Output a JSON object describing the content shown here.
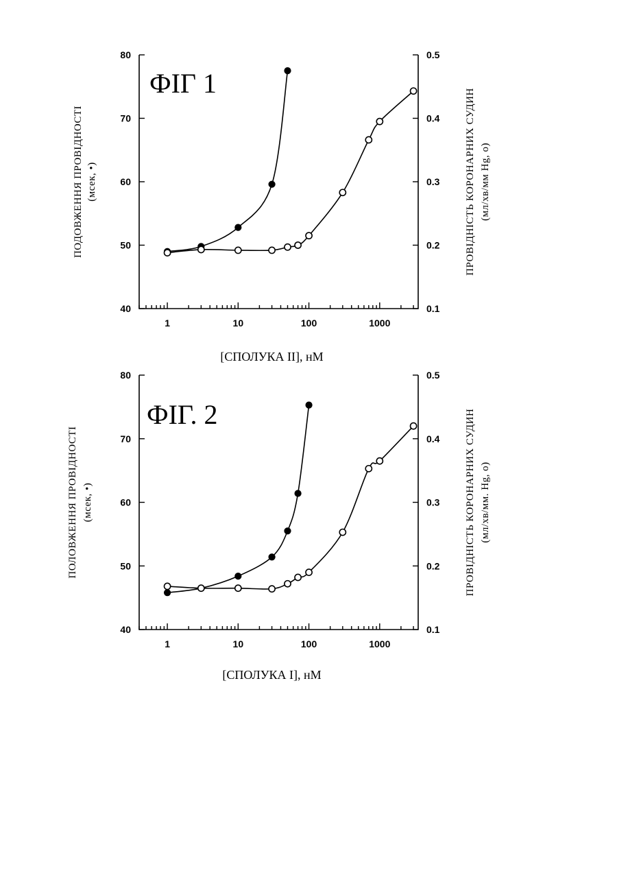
{
  "chart_data": [
    {
      "type": "line",
      "title": "ФІГ 1",
      "xlabel": "[СПОЛУКА II], нМ",
      "xscale": "log",
      "xlim": [
        0.4,
        3500
      ],
      "xticks": [
        1,
        10,
        100,
        1000
      ],
      "xtick_labels": [
        "1",
        "10",
        "100",
        "1000"
      ],
      "ylabel_left": [
        "ПОДОВЖЕННЯ ПРОВІДНОСТІ",
        "(мсек, •)"
      ],
      "ylim_left": [
        40,
        80
      ],
      "yticks_left": [
        40,
        50,
        60,
        70,
        80
      ],
      "ytick_labels_left": [
        "40",
        "50",
        "60",
        "70",
        "80"
      ],
      "ylabel_right": [
        "ПРОВІДНІСТЬ КОРОНАРНИХ СУДИН",
        "(мл/хв/мм Hg, o)"
      ],
      "ylim_right": [
        0.1,
        0.5
      ],
      "yticks_right": [
        0.1,
        0.2,
        0.3,
        0.4,
        0.5
      ],
      "ytick_labels_right": [
        "0.1",
        "0.2",
        "0.3",
        "0.4",
        "0.5"
      ],
      "series": [
        {
          "marker": "filled",
          "axis": "left",
          "x": [
            1,
            3,
            10,
            30,
            50
          ],
          "y": [
            49,
            49.8,
            52.8,
            59.6,
            77.5
          ]
        },
        {
          "marker": "open",
          "axis": "right",
          "x": [
            1,
            3,
            10,
            30,
            50,
            70,
            100,
            300,
            700,
            1000,
            3000
          ],
          "y": [
            0.188,
            0.193,
            0.192,
            0.192,
            0.197,
            0.2,
            0.215,
            0.283,
            0.366,
            0.395,
            0.443
          ]
        }
      ]
    },
    {
      "type": "line",
      "title": "ФІГ. 2",
      "xlabel": "[СПОЛУКА І], нМ",
      "xscale": "log",
      "xlim": [
        0.4,
        3500
      ],
      "xticks": [
        1,
        10,
        100,
        1000
      ],
      "xtick_labels": [
        "1",
        "10",
        "100",
        "1000"
      ],
      "ylabel_left": [
        "ПОЛОВЖЕННЯ ПРОВІДНОСТІ",
        "(мсек, •)"
      ],
      "ylim_left": [
        40,
        80
      ],
      "yticks_left": [
        40,
        50,
        60,
        70,
        80
      ],
      "ytick_labels_left": [
        "40",
        "50",
        "60",
        "70",
        "80"
      ],
      "ylabel_right": [
        "ПРОВІДНІСТЬ КОРОНАРНИХ СУДИН",
        "(мл/хв/мм. Hg, o)"
      ],
      "ylim_right": [
        0.1,
        0.5
      ],
      "yticks_right": [
        0.1,
        0.2,
        0.3,
        0.4,
        0.5
      ],
      "ytick_labels_right": [
        "0.1",
        "0.2",
        "0.3",
        "0.4",
        "0.5"
      ],
      "series": [
        {
          "marker": "filled",
          "axis": "left",
          "x": [
            1,
            3,
            10,
            30,
            50,
            70,
            100
          ],
          "y": [
            45.8,
            46.5,
            48.4,
            51.4,
            55.5,
            61.4,
            75.3
          ]
        },
        {
          "marker": "open",
          "axis": "right",
          "x": [
            1,
            3,
            10,
            30,
            50,
            70,
            100,
            300,
            700,
            1000,
            3000
          ],
          "y": [
            0.168,
            0.165,
            0.165,
            0.164,
            0.172,
            0.182,
            0.19,
            0.253,
            0.353,
            0.365,
            0.42
          ]
        }
      ]
    }
  ]
}
